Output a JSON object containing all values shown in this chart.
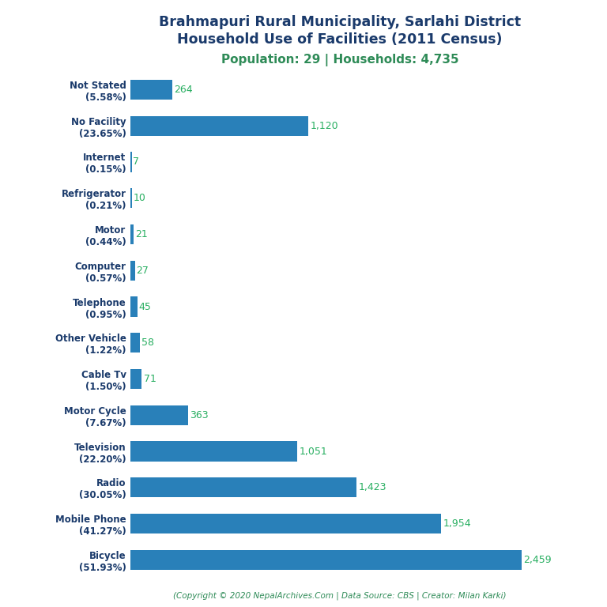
{
  "title_line1": "Brahmapuri Rural Municipality, Sarlahi District",
  "title_line2": "Household Use of Facilities (2011 Census)",
  "subtitle": "Population: 29 | Households: 4,735",
  "footer": "(Copyright © 2020 NepalArchives.Com | Data Source: CBS | Creator: Milan Karki)",
  "categories": [
    "Not Stated\n(5.58%)",
    "No Facility\n(23.65%)",
    "Internet\n(0.15%)",
    "Refrigerator\n(0.21%)",
    "Motor\n(0.44%)",
    "Computer\n(0.57%)",
    "Telephone\n(0.95%)",
    "Other Vehicle\n(1.22%)",
    "Cable Tv\n(1.50%)",
    "Motor Cycle\n(7.67%)",
    "Television\n(22.20%)",
    "Radio\n(30.05%)",
    "Mobile Phone\n(41.27%)",
    "Bicycle\n(51.93%)"
  ],
  "values": [
    264,
    1120,
    7,
    10,
    21,
    27,
    45,
    58,
    71,
    363,
    1051,
    1423,
    1954,
    2459
  ],
  "bar_color": "#2980b9",
  "value_color": "#27ae60",
  "title_color": "#1a3a6b",
  "subtitle_color": "#2e8b57",
  "footer_color": "#2e8b57",
  "background_color": "#ffffff",
  "xlim": [
    0,
    2750
  ]
}
